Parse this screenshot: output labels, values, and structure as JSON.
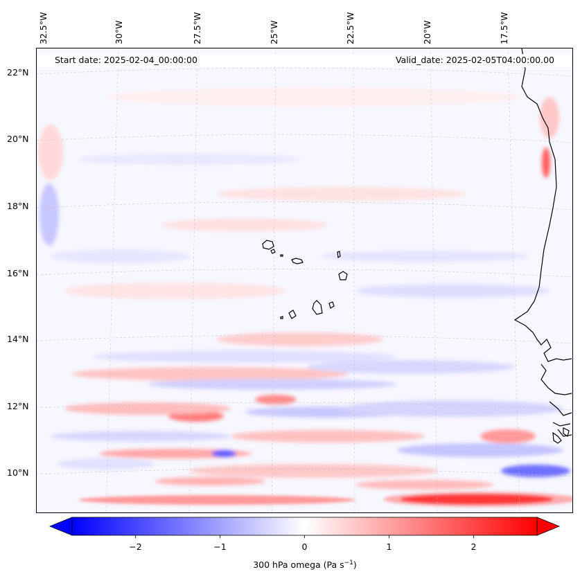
{
  "title_bar": {
    "start_date": "Start date: 2025-02-04_00:00:00",
    "valid_date": "Valid_date: 2025-02-05T04:00:00.00"
  },
  "map": {
    "longitude_labels": [
      "32.5°W",
      "30°W",
      "27.5°W",
      "25°W",
      "22.5°W",
      "20°W",
      "17.5°W"
    ],
    "latitude_labels": [
      "22°N",
      "20°N",
      "18°N",
      "16°N",
      "14°N",
      "12°N",
      "10°N"
    ],
    "field_colors": {
      "strong_positive": "#ff0000",
      "positive": "#ff9a9a",
      "weak_positive": "#ffd9d9",
      "neutral": "#f7f7ff",
      "weak_negative": "#d9d9ff",
      "negative": "#9a9aff",
      "strong_negative": "#0000ff"
    }
  },
  "colorbar": {
    "label_prefix": "300 hPa omega (Pa s",
    "label_exp": "−1",
    "label_suffix": ")",
    "ticks": [
      "−2",
      "−1",
      "0",
      "1",
      "2"
    ],
    "tick_values": [
      -2,
      -1,
      0,
      1,
      2
    ],
    "vmin": -2.75,
    "vmax": 2.75,
    "colors": {
      "min": "#0000ff",
      "mid": "#ffffff",
      "max": "#ff0000"
    }
  }
}
